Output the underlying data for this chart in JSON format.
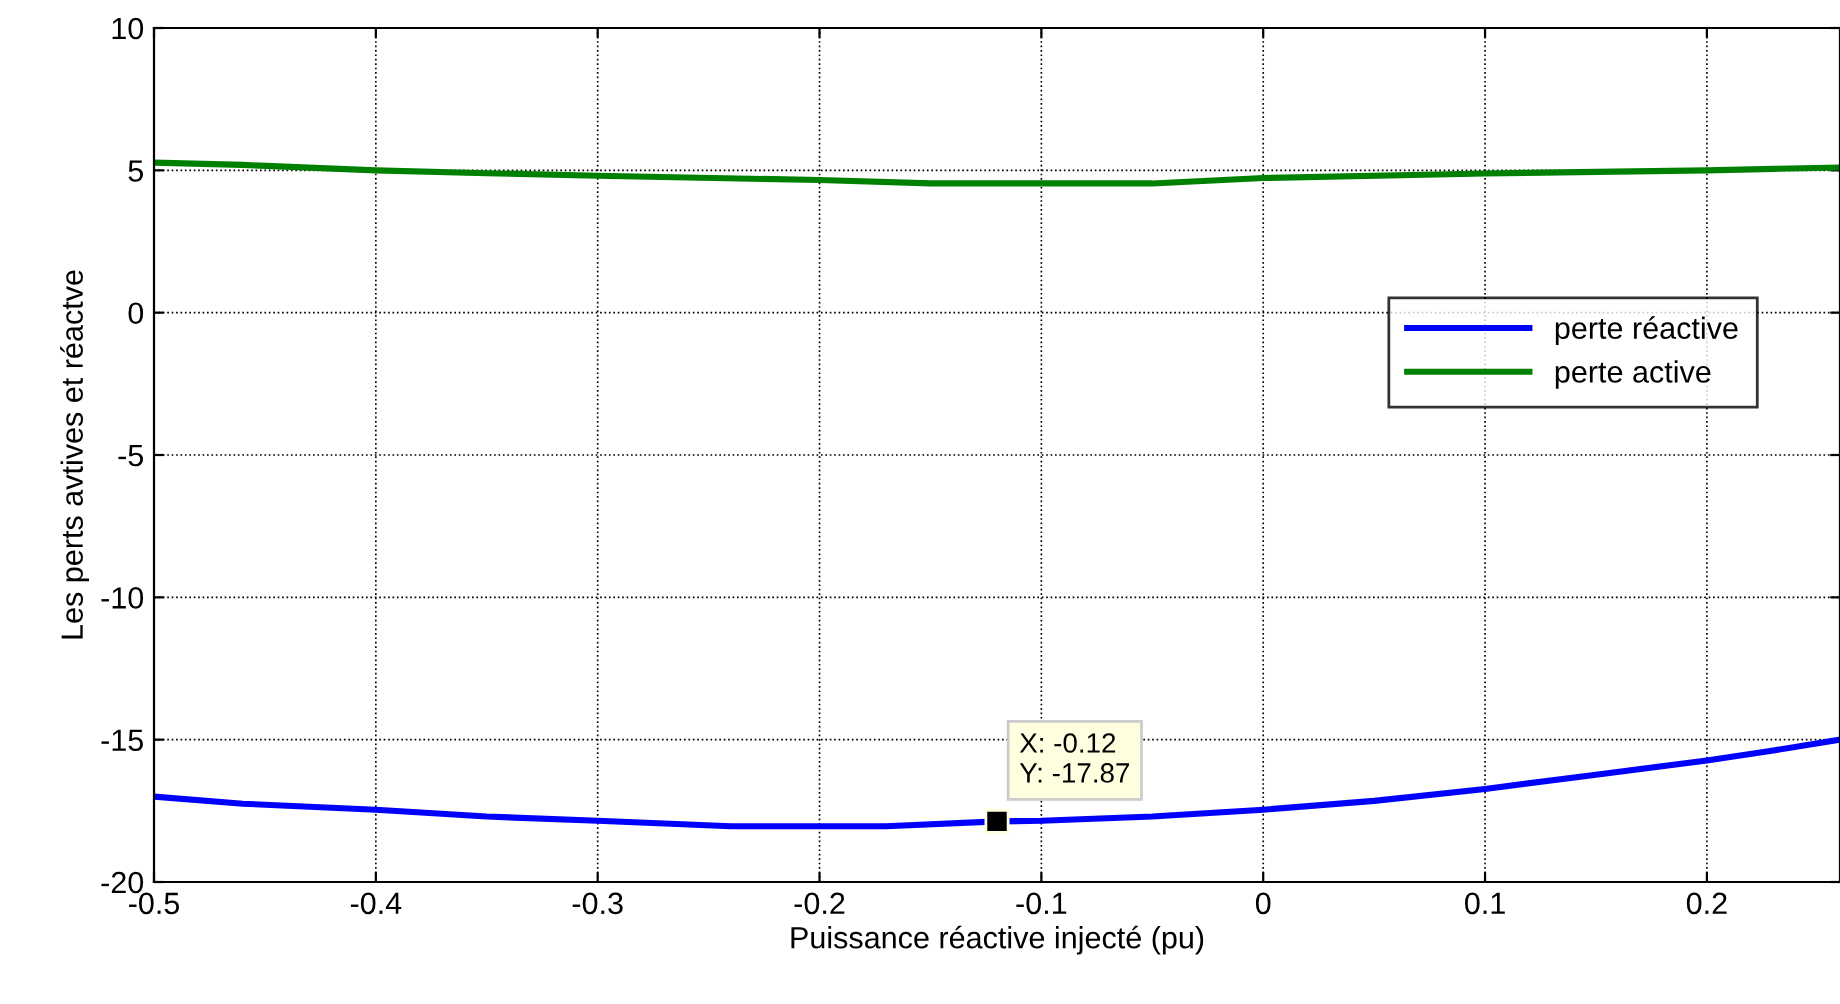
{
  "chart_data": {
    "type": "line",
    "xlabel": "Puissance réactive injecté (pu)",
    "ylabel": "Les perts avtives et réactve",
    "series": [
      {
        "name": "perte réactive",
        "color": "#0000ff",
        "x": [
          -0.5,
          -0.46,
          -0.4,
          -0.35,
          -0.3,
          -0.24,
          -0.17,
          -0.12,
          -0.1,
          -0.05,
          0,
          0.05,
          0.1,
          0.15,
          0.2,
          0.23,
          0.26
        ],
        "values": [
          -17.0,
          -17.25,
          -17.46,
          -17.7,
          -17.85,
          -18.04,
          -18.04,
          -17.87,
          -17.85,
          -17.7,
          -17.46,
          -17.15,
          -16.73,
          -16.23,
          -15.73,
          -15.38,
          -15.0
        ]
      },
      {
        "name": "perte active",
        "color": "#008000",
        "x": [
          -0.5,
          -0.46,
          -0.4,
          -0.35,
          -0.3,
          -0.2,
          -0.15,
          -0.05,
          0,
          0.1,
          0.2,
          0.23,
          0.26
        ],
        "values": [
          5.27,
          5.19,
          5.0,
          4.9,
          4.81,
          4.66,
          4.54,
          4.54,
          4.73,
          4.89,
          5.0,
          5.05,
          5.1
        ]
      }
    ],
    "annotations": [
      {
        "text": "X: -0.12\nY: -17.87",
        "x": -0.12,
        "y": -17.87
      }
    ],
    "xlim": [
      -0.5,
      0.26
    ],
    "xticks": [
      -0.5,
      -0.4,
      -0.3,
      -0.2,
      -0.1,
      0,
      0.1,
      0.2
    ],
    "ylim": [
      -20,
      10
    ],
    "yticks": [
      -20,
      -15,
      -10,
      -5,
      0,
      5,
      10
    ],
    "grid": true,
    "legend": "right",
    "marker": "none",
    "line_style": "solid"
  }
}
